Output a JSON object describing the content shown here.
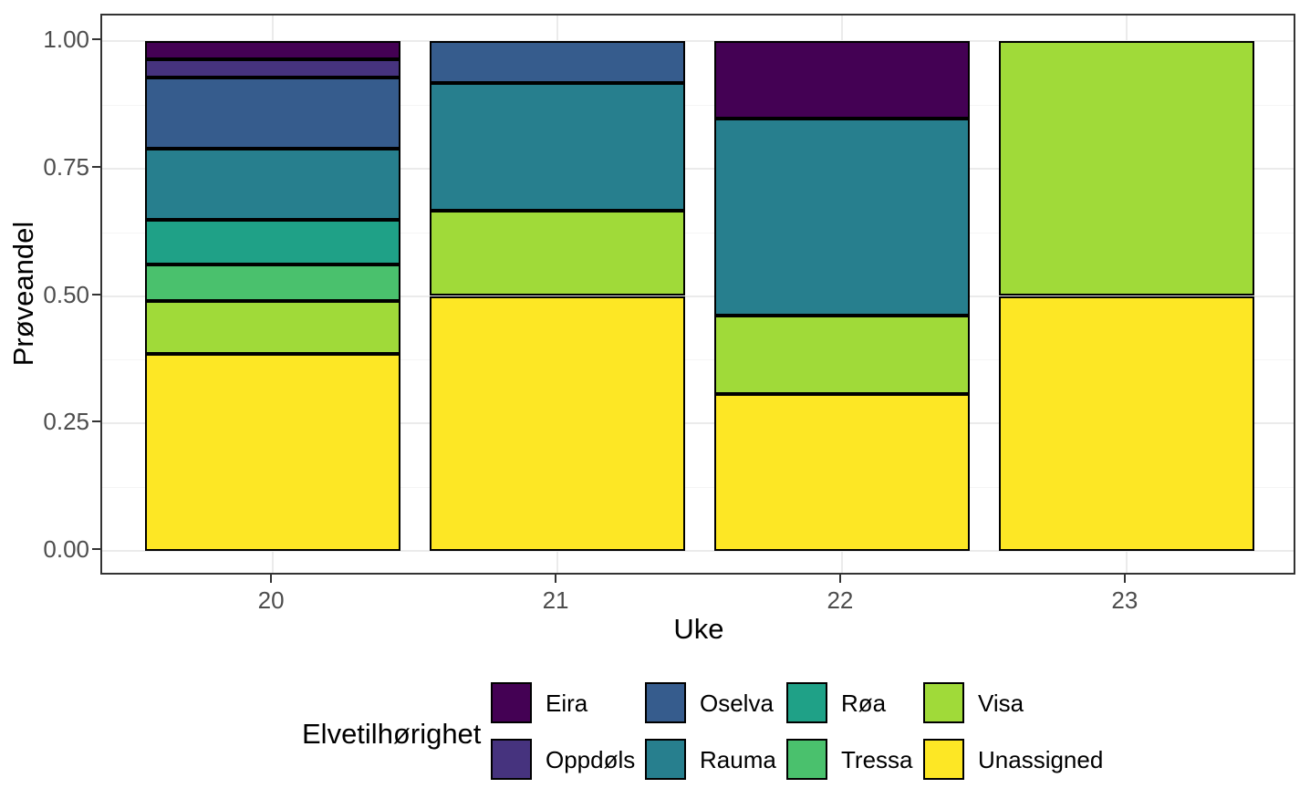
{
  "chart_data": {
    "type": "bar",
    "stacked": true,
    "normalized": true,
    "xlabel": "Uke",
    "ylabel": "Prøveandel",
    "categories": [
      "20",
      "21",
      "22",
      "23"
    ],
    "series": [
      {
        "name": "Unassigned",
        "color": "#FDE725",
        "values": [
          0.386,
          0.5,
          0.308,
          0.5
        ]
      },
      {
        "name": "Visa",
        "color": "#A0DA39",
        "values": [
          0.105,
          0.167,
          0.154,
          0.5
        ]
      },
      {
        "name": "Tressa",
        "color": "#4AC16D",
        "values": [
          0.07,
          0.0,
          0.0,
          0.0
        ]
      },
      {
        "name": "Røa",
        "color": "#1FA187",
        "values": [
          0.088,
          0.0,
          0.0,
          0.0
        ]
      },
      {
        "name": "Rauma",
        "color": "#277F8E",
        "values": [
          0.14,
          0.25,
          0.385,
          0.0
        ]
      },
      {
        "name": "Oselva",
        "color": "#365C8D",
        "values": [
          0.14,
          0.083,
          0.0,
          0.0
        ]
      },
      {
        "name": "Oppdøls",
        "color": "#46337E",
        "values": [
          0.035,
          0.0,
          0.0,
          0.0
        ]
      },
      {
        "name": "Eira",
        "color": "#440154",
        "values": [
          0.036,
          0.0,
          0.153,
          0.0
        ]
      }
    ],
    "y_ticks": [
      "0.00",
      "0.25",
      "0.50",
      "0.75",
      "1.00"
    ],
    "y_minor_ticks": [
      0.125,
      0.375,
      0.625,
      0.875
    ],
    "ylim": [
      0,
      1
    ],
    "grid": true,
    "legend": {
      "title": "Elvetilhørighet",
      "position": "bottom",
      "rows": 2,
      "items": [
        "Eira",
        "Oppdøls",
        "Oselva",
        "Rauma",
        "Røa",
        "Tressa",
        "Visa",
        "Unassigned"
      ]
    }
  }
}
